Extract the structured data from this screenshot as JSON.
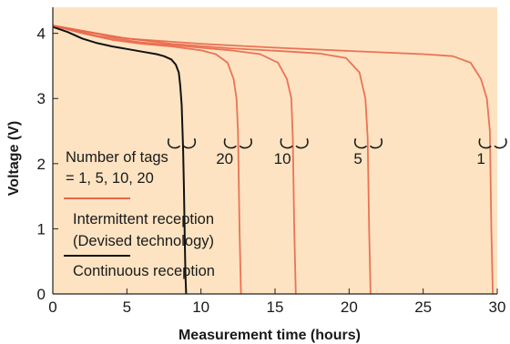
{
  "chart_data": {
    "type": "line",
    "xlabel": "Measurement time (hours)",
    "ylabel": "Voltage (V)",
    "xlim": [
      0,
      30
    ],
    "ylim": [
      0,
      4.4
    ],
    "x_ticks": [
      0,
      5,
      10,
      15,
      20,
      25,
      30
    ],
    "y_ticks": [
      0,
      1,
      2,
      3,
      4
    ],
    "grid": false,
    "background": "#fde3c2",
    "legend": {
      "header_line1": "Number of tags",
      "header_line2": "= 1, 5, 10, 20",
      "entries": [
        {
          "line1": "Intermittent reception",
          "line2": "(Devised technology)",
          "color": "#e8664a"
        },
        {
          "line1": "Continuous reception",
          "line2": "",
          "color": "#111111"
        }
      ]
    },
    "series": [
      {
        "name": "Continuous reception",
        "color": "#111111",
        "x": [
          0,
          1,
          2,
          3,
          4,
          5,
          6,
          7,
          7.5,
          8,
          8.3,
          8.5,
          8.6,
          8.7,
          8.75,
          8.8,
          8.85,
          8.9,
          8.95,
          9.0
        ],
        "y": [
          4.1,
          4.02,
          3.92,
          3.85,
          3.8,
          3.76,
          3.72,
          3.68,
          3.65,
          3.6,
          3.52,
          3.4,
          3.2,
          2.9,
          2.55,
          2.2,
          1.6,
          0.9,
          0.3,
          0
        ]
      },
      {
        "name": "20",
        "color": "#e8664a",
        "x": [
          0,
          2,
          4,
          6,
          8,
          10,
          11,
          11.8,
          12.2,
          12.4,
          12.5,
          12.6,
          12.7
        ],
        "y": [
          4.12,
          4.0,
          3.9,
          3.84,
          3.8,
          3.74,
          3.68,
          3.55,
          3.3,
          3.0,
          2.5,
          1.0,
          0
        ]
      },
      {
        "name": "10",
        "color": "#e8664a",
        "x": [
          0,
          3,
          6,
          9,
          12,
          14,
          15.2,
          15.8,
          16.1,
          16.2,
          16.3,
          16.4
        ],
        "y": [
          4.12,
          3.96,
          3.86,
          3.8,
          3.74,
          3.68,
          3.55,
          3.3,
          3.0,
          2.4,
          1.0,
          0
        ]
      },
      {
        "name": "5",
        "color": "#e8664a",
        "x": [
          0,
          4,
          8,
          12,
          16,
          18,
          19.8,
          20.7,
          21.1,
          21.25,
          21.35,
          21.45
        ],
        "y": [
          4.12,
          3.95,
          3.84,
          3.77,
          3.72,
          3.69,
          3.62,
          3.4,
          3.0,
          2.4,
          1.0,
          0
        ]
      },
      {
        "name": "1",
        "color": "#e8664a",
        "x": [
          0,
          5,
          10,
          15,
          20,
          25,
          27,
          28.2,
          28.9,
          29.3,
          29.5,
          29.6,
          29.7
        ],
        "y": [
          4.12,
          3.92,
          3.84,
          3.78,
          3.73,
          3.68,
          3.65,
          3.55,
          3.3,
          3.0,
          2.5,
          1.0,
          0
        ]
      }
    ],
    "count_labels": [
      {
        "text": "20",
        "x": 11.6
      },
      {
        "text": "10",
        "x": 15.5
      },
      {
        "text": "5",
        "x": 20.6
      },
      {
        "text": "1",
        "x": 28.9
      }
    ],
    "bracket_positions": [
      8.7,
      12.5,
      16.3,
      21.3,
      29.7
    ]
  }
}
